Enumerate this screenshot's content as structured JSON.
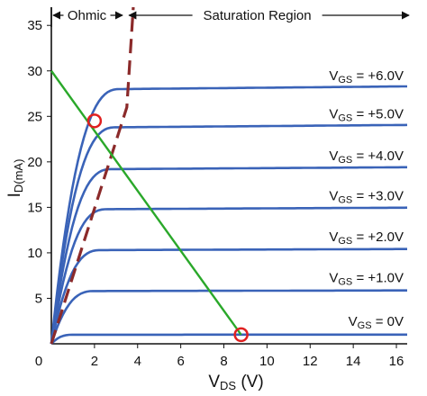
{
  "chart_data": {
    "type": "line",
    "x_axis": {
      "label_main": "V",
      "label_sub": "DS",
      "label_unit": " (V)",
      "range": [
        0,
        16.5
      ],
      "ticks": [
        0,
        2,
        4,
        6,
        8,
        10,
        12,
        14,
        16
      ],
      "tick_labels": [
        "0",
        "2",
        "4",
        "6",
        "8",
        "10",
        "12",
        "14",
        "16"
      ]
    },
    "y_axis": {
      "label_main": "I",
      "label_sub": "D(mA)",
      "range": [
        0,
        37
      ],
      "ticks": [
        0,
        5,
        10,
        15,
        20,
        25,
        30,
        35
      ],
      "tick_labels": [
        "0",
        "5",
        "10",
        "15",
        "20",
        "25",
        "30",
        "35"
      ]
    },
    "grid": false,
    "regions": [
      {
        "label": "Ohmic",
        "x_start": 0,
        "x_end": 3.3
      },
      {
        "label": "Saturation Region",
        "x_start": 3.6,
        "x_end": 16.5
      }
    ],
    "series": [
      {
        "name_prefix": "V",
        "name_sub": "GS",
        "name_suffix": " = +6.0V",
        "saturation_current": 28,
        "knee_v": 3.2
      },
      {
        "name_prefix": "V",
        "name_sub": "GS",
        "name_suffix": " = +5.0V",
        "saturation_current": 23.8,
        "knee_v": 3.0
      },
      {
        "name_prefix": "V",
        "name_sub": "GS",
        "name_suffix": " = +4.0V",
        "saturation_current": 19.2,
        "knee_v": 2.8
      },
      {
        "name_prefix": "V",
        "name_sub": "GS",
        "name_suffix": " = +3.0V",
        "saturation_current": 14.8,
        "knee_v": 2.6
      },
      {
        "name_prefix": "V",
        "name_sub": "GS",
        "name_suffix": " = +2.0V",
        "saturation_current": 10.3,
        "knee_v": 2.3
      },
      {
        "name_prefix": "V",
        "name_sub": "GS",
        "name_suffix": " = +1.0V",
        "saturation_current": 5.8,
        "knee_v": 2.0
      },
      {
        "name_prefix": "V",
        "name_sub": "GS",
        "name_suffix": " = 0V",
        "saturation_current": 1.0,
        "knee_v": 1.0
      }
    ],
    "load_line": {
      "x": [
        0,
        8.8
      ],
      "y": [
        30,
        1
      ]
    },
    "pinch_off_line": {
      "x": [
        0,
        3.5,
        3.8
      ],
      "y": [
        0,
        26,
        37
      ]
    },
    "operating_points": [
      {
        "x": 2.0,
        "y": 24.5
      },
      {
        "x": 8.8,
        "y": 1.0
      }
    ],
    "colors": {
      "curves": "#3a63b8",
      "load_line": "#2aa82a",
      "pinch_off": "#8b2a2a",
      "markers": "#e02020",
      "axes": "#111111"
    }
  }
}
